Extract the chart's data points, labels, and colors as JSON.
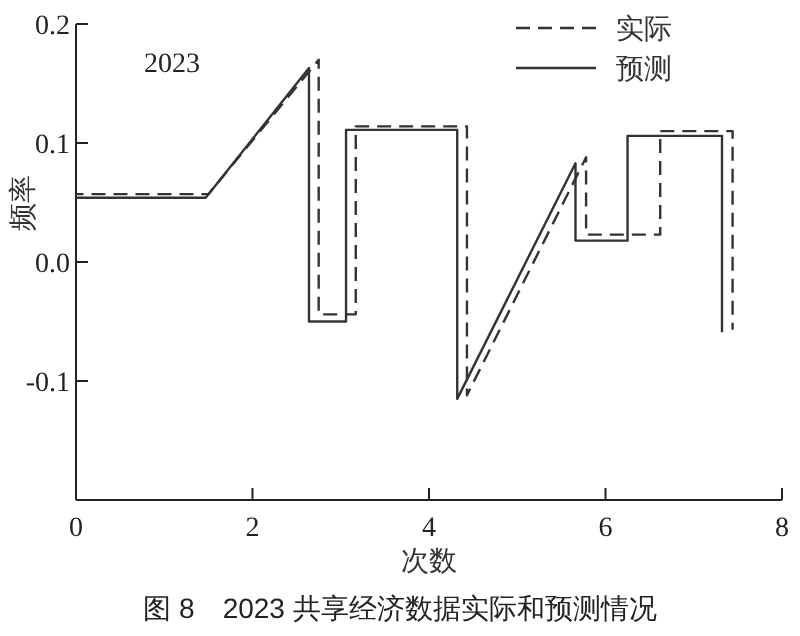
{
  "chart_data": {
    "type": "line",
    "xlabel": "次数",
    "ylabel": "频率",
    "annotations": [
      "2023",
      "图 8　2023 共享经济数据实际和预测情况"
    ],
    "xlim": [
      0,
      8
    ],
    "xticks": [
      0,
      2,
      4,
      6,
      8
    ],
    "ylim": [
      -0.2,
      0.2
    ],
    "yticks": [
      {
        "value": -0.1,
        "label": "-0.1"
      },
      {
        "value": 0,
        "label": "0.0"
      },
      0.1,
      0.2
    ],
    "grid": false,
    "legend": "top right",
    "marker": "none",
    "series": [
      {
        "name": "实际",
        "color": "#333333",
        "line_style": "dashed",
        "x": [
          0,
          1.5,
          2.75,
          2.75,
          3.17,
          3.17,
          4.43,
          4.43,
          5.78,
          5.78,
          6.62,
          6.62,
          7.44,
          7.44
        ],
        "values": [
          0.057,
          0.057,
          0.17,
          -0.044,
          -0.044,
          0.114,
          0.114,
          -0.112,
          0.088,
          0.023,
          0.023,
          0.11,
          0.11,
          -0.057
        ]
      },
      {
        "name": "预测",
        "color": "#333333",
        "line_style": "solid",
        "x": [
          0,
          1.47,
          2.64,
          2.64,
          3.06,
          3.06,
          4.32,
          4.32,
          5.66,
          5.66,
          6.25,
          6.25,
          7.32,
          7.32
        ],
        "values": [
          0.054,
          0.054,
          0.163,
          -0.05,
          -0.05,
          0.111,
          0.111,
          -0.115,
          0.083,
          0.018,
          0.018,
          0.106,
          0.106,
          -0.059
        ]
      }
    ]
  }
}
